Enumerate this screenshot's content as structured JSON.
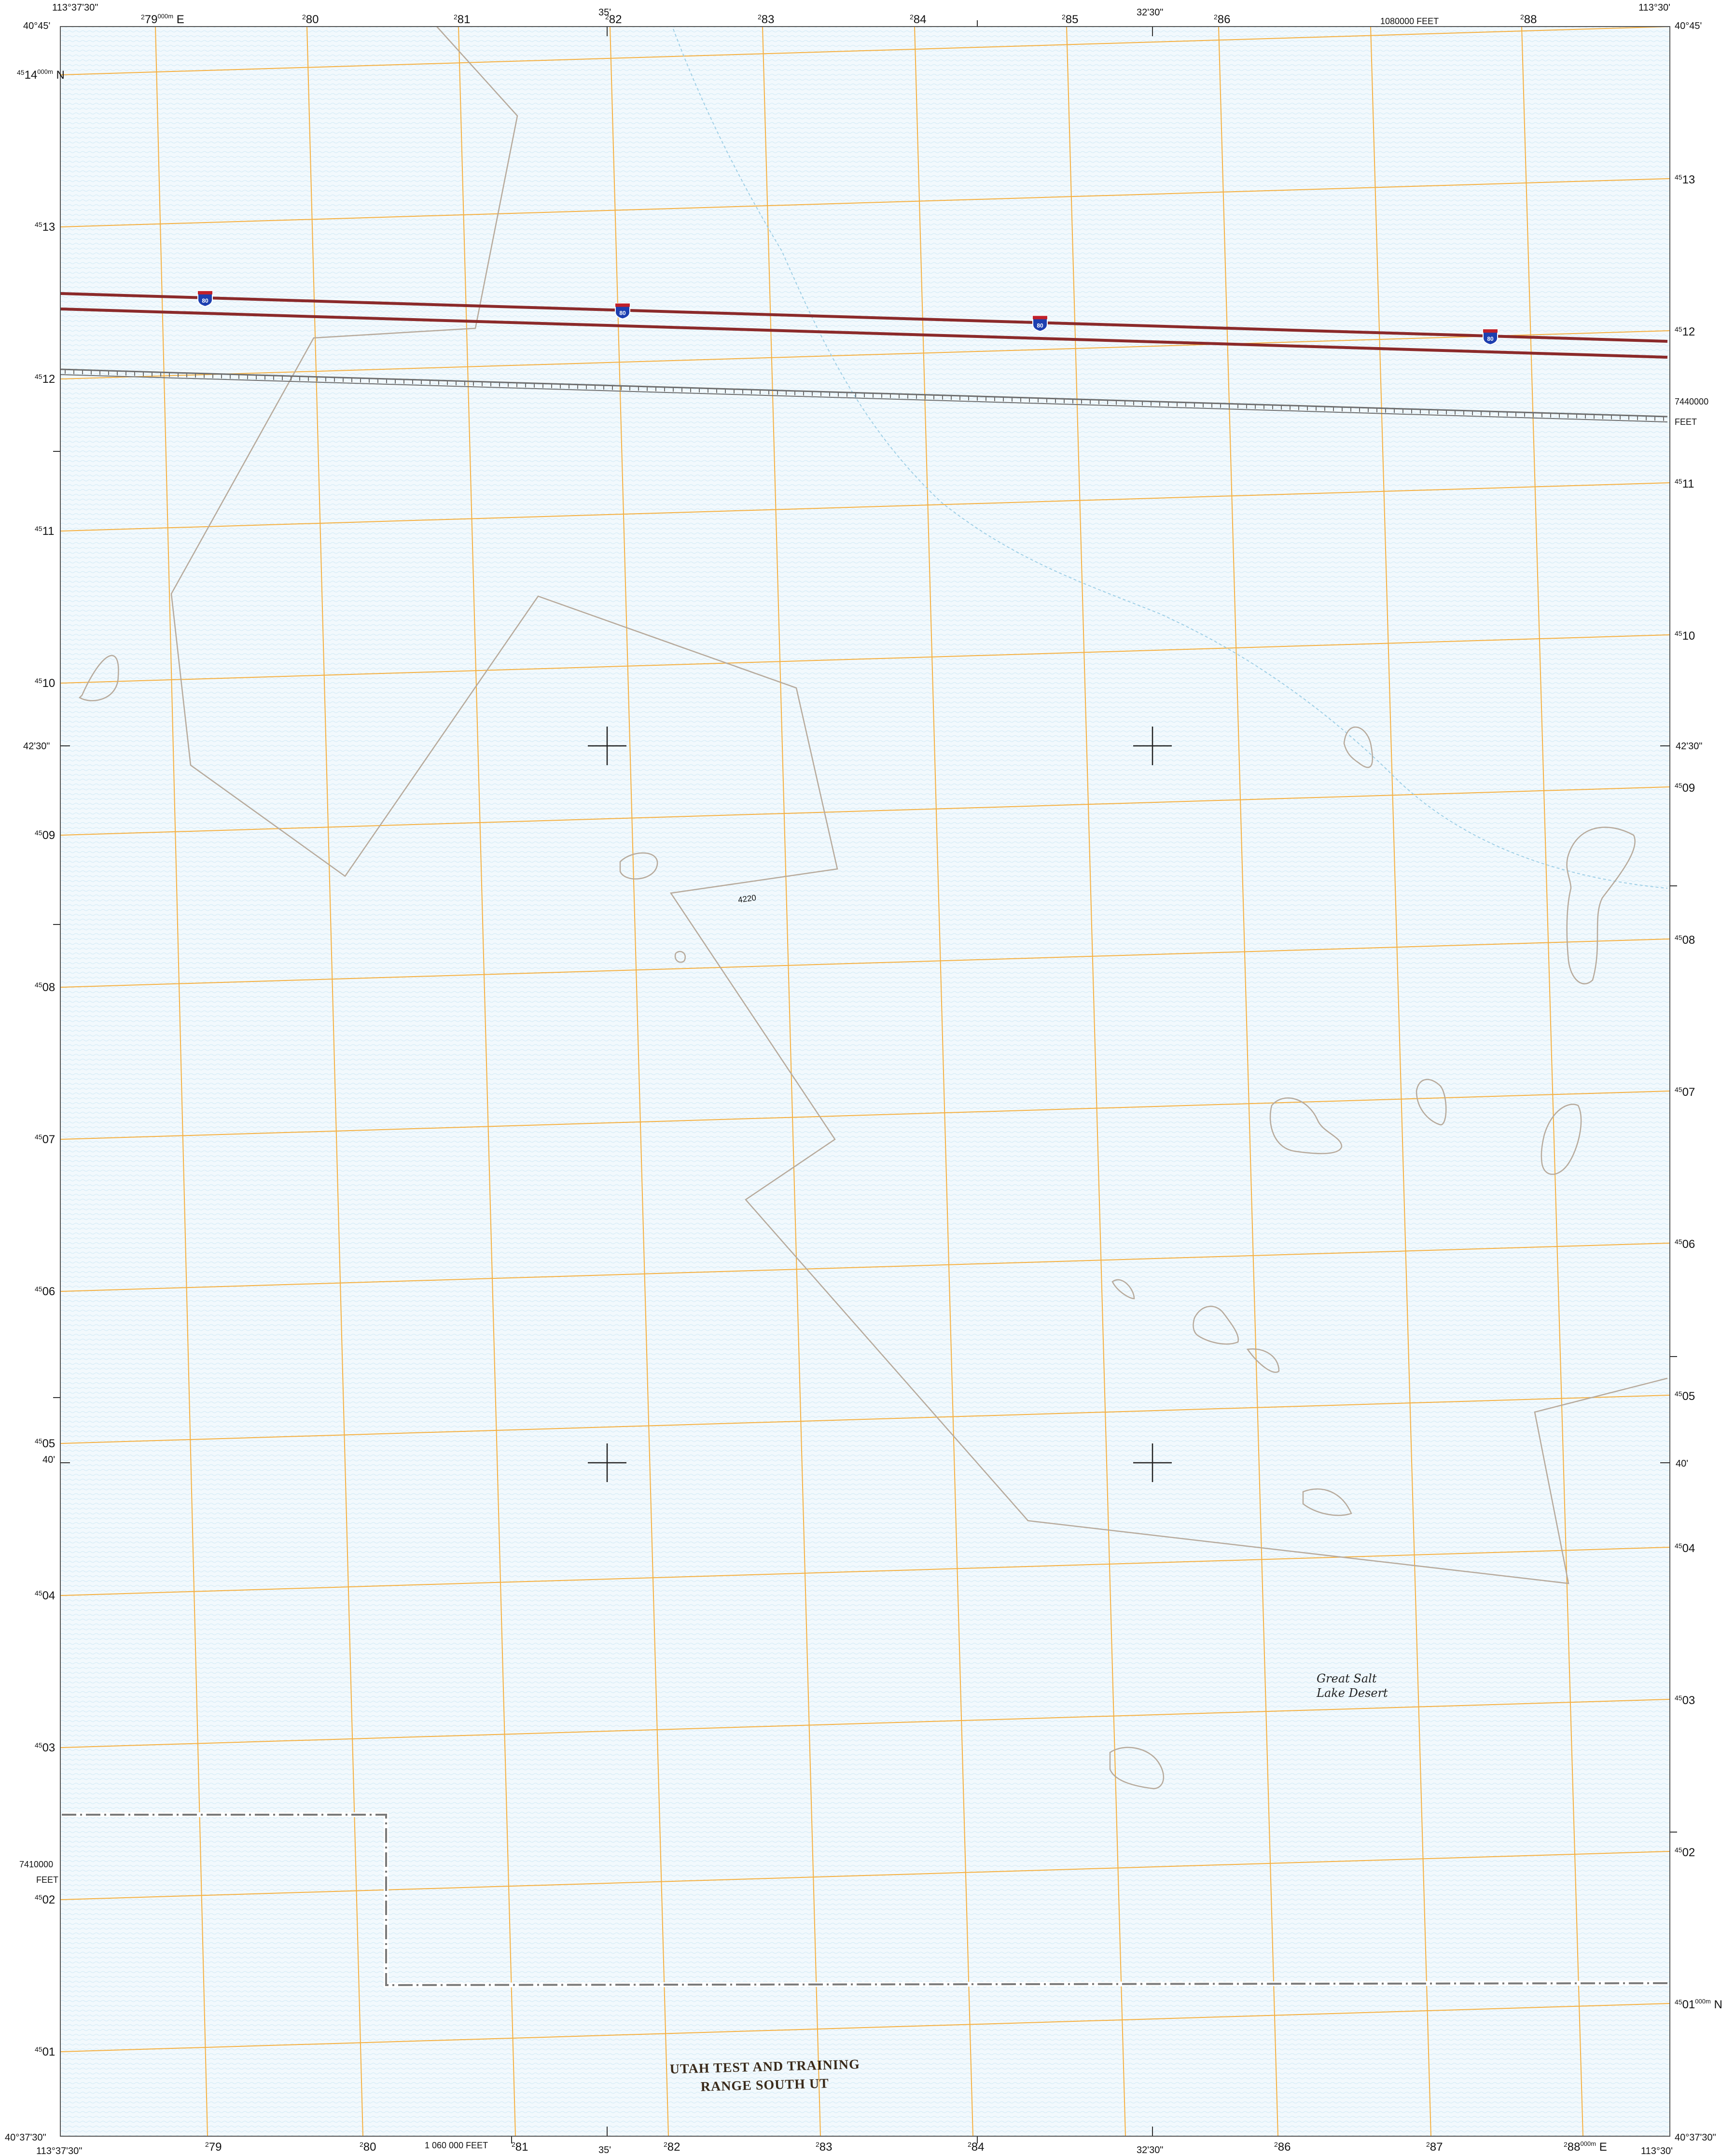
{
  "colors": {
    "water_fill": "#f2f9fd",
    "water_stipple": "#cfe8f5",
    "grid": "#f5b041",
    "interstate": "#8b2a2a",
    "railroad": "#6e6e6e",
    "contour": "#b7aa9c",
    "boundary": "#7a7a7a",
    "shoreline": "#9fcfe6"
  },
  "corners": {
    "top_left_lon": "113°37'30\"",
    "top_left_lat": "40°45'",
    "top_right_lon": "113°30'",
    "top_right_lat": "40°45'",
    "bottom_left_lat": "40°37'30\"",
    "bottom_left_lon": "113°37'30\"",
    "bottom_right_lat": "40°37'30\"",
    "bottom_right_lon": "113°30'"
  },
  "top_labels": {
    "min35": "35'",
    "min3230": "32'30\"",
    "feet": "1080000 FEET"
  },
  "bottom_labels": {
    "min35": "35'",
    "min3230": "32'30\"",
    "feet": "1 060 000 FEET"
  },
  "left_labels": {
    "min4230": "42'30\"",
    "min40": "40'",
    "feet_value": "7410000",
    "feet_unit": "FEET"
  },
  "right_labels": {
    "min4230": "42'30\"",
    "min40": "40'",
    "feet_value": "7440000",
    "feet_unit": "FEET"
  },
  "utm_easting": {
    "prefix": "2",
    "top": [
      "79",
      "80",
      "81",
      "82",
      "83",
      "84",
      "85",
      "86",
      "88"
    ],
    "top_first_suffix": "000m E",
    "bottom": [
      "79",
      "80",
      "81",
      "82",
      "83",
      "84",
      "86",
      "87",
      "88"
    ],
    "bottom_last_suffix": "000m E"
  },
  "utm_northing": {
    "prefix": "45",
    "left": [
      "14",
      "13",
      "12",
      "11",
      "10",
      "09",
      "08",
      "07",
      "06",
      "05",
      "04",
      "03",
      "02",
      "01"
    ],
    "left_first_suffix": "000m N",
    "right": [
      "13",
      "12",
      "11",
      "10",
      "09",
      "08",
      "07",
      "06",
      "05",
      "04",
      "03",
      "02",
      "01"
    ],
    "right_last_suffix": "000m N"
  },
  "features": {
    "interstate_shield": "80",
    "contour_label": "4220",
    "place_line1": "Great Salt",
    "place_line2": "Lake Desert",
    "area_line1": "UTAH TEST AND TRAINING",
    "area_line2": "RANGE SOUTH UT"
  }
}
